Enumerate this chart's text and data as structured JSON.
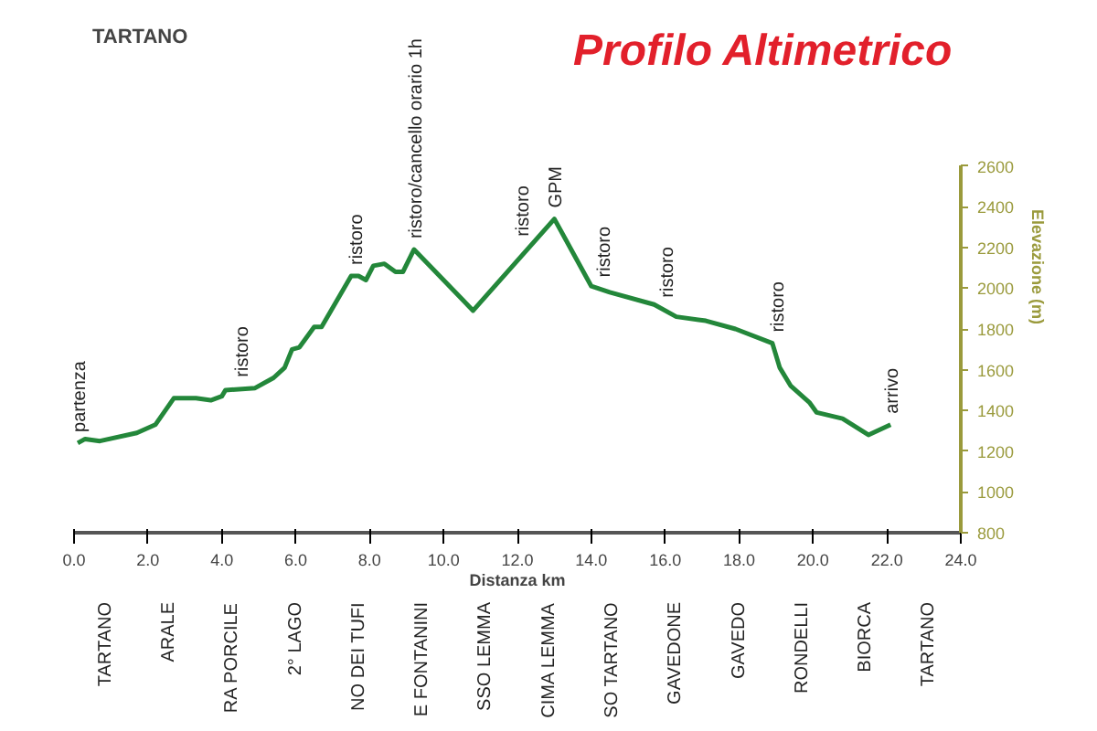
{
  "chart_data": {
    "type": "line",
    "title": "Profilo Altimetrico",
    "xlabel": "Distanza km",
    "ylabel": "Elevazione (m)",
    "x": [
      0.1,
      0.3,
      0.7,
      1.7,
      2.2,
      2.7,
      3.3,
      3.7,
      4.0,
      4.1,
      4.9,
      5.4,
      5.7,
      5.9,
      6.1,
      6.5,
      6.7,
      7.5,
      7.7,
      7.9,
      8.1,
      8.4,
      8.7,
      8.9,
      9.2,
      10.8,
      13.0,
      14.0,
      14.5,
      15.7,
      16.3,
      17.1,
      17.9,
      18.9,
      19.1,
      19.4,
      19.9,
      20.1,
      20.8,
      21.5,
      22.1
    ],
    "series": [
      {
        "color": "#23873a",
        "values": [
          1240,
          1260,
          1250,
          1290,
          1330,
          1460,
          1460,
          1450,
          1470,
          1500,
          1510,
          1560,
          1610,
          1700,
          1710,
          1810,
          1810,
          2060,
          2060,
          2040,
          2110,
          2120,
          2080,
          2080,
          2190,
          1890,
          2340,
          2010,
          1980,
          1920,
          1860,
          1840,
          1800,
          1730,
          1610,
          1520,
          1440,
          1390,
          1360,
          1280,
          1330
        ]
      }
    ],
    "xlim": [
      0,
      24
    ],
    "xticks": [
      {
        "value": 0,
        "label": "0.0"
      },
      {
        "value": 2,
        "label": "2.0"
      },
      {
        "value": 4,
        "label": "4.0"
      },
      {
        "value": 6,
        "label": "6.0"
      },
      {
        "value": 8,
        "label": "8.0"
      },
      {
        "value": 10,
        "label": "10.0"
      },
      {
        "value": 12,
        "label": "12.0"
      },
      {
        "value": 14,
        "label": "14.0"
      },
      {
        "value": 16,
        "label": "16.0"
      },
      {
        "value": 18,
        "label": "18.0"
      },
      {
        "value": 20,
        "label": "20.0"
      },
      {
        "value": 22,
        "label": "22.0"
      },
      {
        "value": 24,
        "label": "24.0"
      }
    ],
    "ylim": [
      800,
      2600
    ],
    "yticks": [
      800,
      1000,
      1200,
      1400,
      1600,
      1800,
      2000,
      2200,
      2400,
      2600
    ],
    "grid": false,
    "marker": "none",
    "line_style": "solid",
    "annotations": [
      "TARTANO",
      {
        "text": "partenza",
        "x": 0.1,
        "y": 1240
      },
      {
        "text": "ristoro",
        "x": 4.5,
        "y": 1510
      },
      {
        "text": "ristoro",
        "x": 7.6,
        "y": 2060
      },
      {
        "text": "ristoro/cancello orario 1h",
        "x": 9.2,
        "y": 2190
      },
      {
        "text": "ristoro",
        "x": 12.1,
        "y": 2200
      },
      {
        "text": "GPM",
        "x": 13.0,
        "y": 2340
      },
      {
        "text": "ristoro",
        "x": 14.3,
        "y": 2000
      },
      {
        "text": "ristoro",
        "x": 16.0,
        "y": 1900
      },
      {
        "text": "ristoro",
        "x": 19.0,
        "y": 1730
      },
      {
        "text": "arrivo",
        "x": 22.1,
        "y": 1330
      },
      "TARTANO",
      "ARALE",
      "RA PORCILE",
      "2° LAGO",
      "NO DEI TUFI",
      "E FONTANINI",
      "SSO LEMMA",
      "CIMA LEMMA",
      "SO TARTANO",
      "GAVEDONE",
      "GAVEDO",
      "RONDELLI",
      "BIORCA",
      "TARTANO"
    ]
  }
}
